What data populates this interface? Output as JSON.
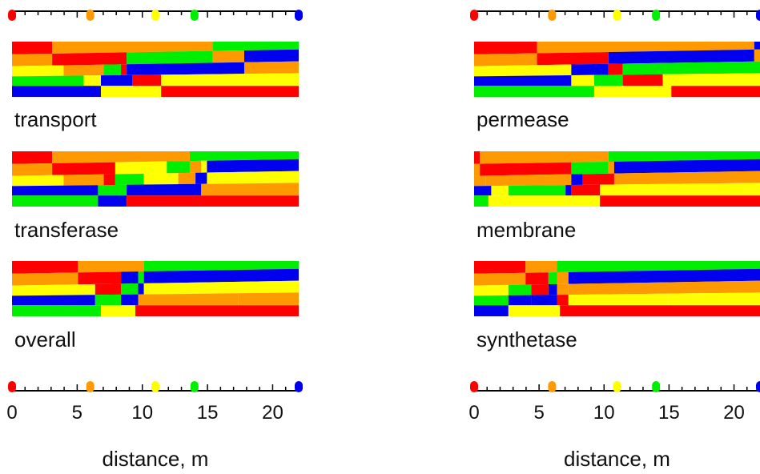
{
  "chart_data": {
    "type": "other",
    "description_of_encoding": "",
    "xlim": [
      0,
      22
    ],
    "xlabel": "distance, m",
    "x_ticks": [
      "0",
      "5",
      "10",
      "15",
      "20"
    ],
    "colors": {
      "red": "#ff0000",
      "orange": "#ff9900",
      "yellow": "#ffff00",
      "green": "#00ee00",
      "blue": "#0000ee"
    },
    "markers": [
      {
        "color": "red",
        "x": 0
      },
      {
        "color": "orange",
        "x": 6
      },
      {
        "color": "yellow",
        "x": 11
      },
      {
        "color": "green",
        "x": 14
      },
      {
        "color": "blue",
        "x": 22
      }
    ],
    "columns": [
      {
        "panels": [
          {
            "label": "transport",
            "pattern": "A"
          },
          {
            "label": "transferase",
            "pattern": "B"
          },
          {
            "label": "overall",
            "pattern": "C"
          }
        ]
      },
      {
        "panels": [
          {
            "label": "permease",
            "pattern": "D"
          },
          {
            "label": "membrane",
            "pattern": "E"
          },
          {
            "label": "synthetase",
            "pattern": "F"
          }
        ]
      }
    ]
  }
}
